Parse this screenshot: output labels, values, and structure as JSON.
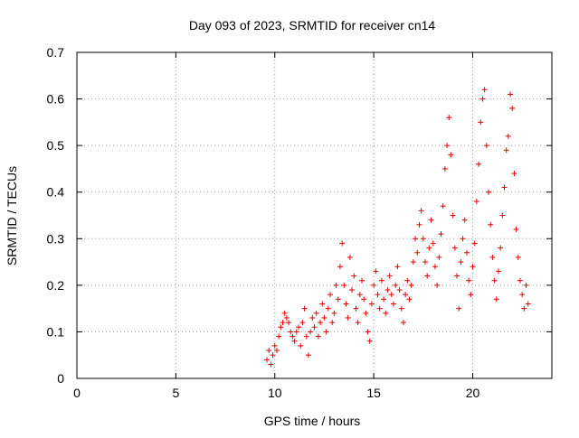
{
  "chart_data": {
    "type": "scatter",
    "title": "Day 093 of 2023, SRMTID for receiver cn14",
    "xlabel": "GPS time / hours",
    "ylabel": "SRMTID / TECUs",
    "xlim": [
      0,
      24
    ],
    "ylim": [
      0,
      0.7
    ],
    "xticks": [
      0,
      5,
      10,
      15,
      20
    ],
    "yticks": [
      0,
      0.1,
      0.2,
      0.3,
      0.4,
      0.5,
      0.6,
      0.7
    ],
    "grid": true,
    "marker": "plus",
    "color": "#e00000",
    "series": [
      {
        "name": "SRMTID",
        "points": [
          [
            9.6,
            0.04
          ],
          [
            9.7,
            0.06
          ],
          [
            9.8,
            0.03
          ],
          [
            9.9,
            0.05
          ],
          [
            10.0,
            0.07
          ],
          [
            10.1,
            0.06
          ],
          [
            10.2,
            0.09
          ],
          [
            10.3,
            0.11
          ],
          [
            10.4,
            0.12
          ],
          [
            10.5,
            0.14
          ],
          [
            10.6,
            0.13
          ],
          [
            10.7,
            0.12
          ],
          [
            10.8,
            0.1
          ],
          [
            10.9,
            0.09
          ],
          [
            11.0,
            0.08
          ],
          [
            11.1,
            0.1
          ],
          [
            11.2,
            0.11
          ],
          [
            11.3,
            0.07
          ],
          [
            11.4,
            0.12
          ],
          [
            11.5,
            0.15
          ],
          [
            11.6,
            0.09
          ],
          [
            11.7,
            0.05
          ],
          [
            11.8,
            0.1
          ],
          [
            11.9,
            0.13
          ],
          [
            12.0,
            0.11
          ],
          [
            12.1,
            0.14
          ],
          [
            12.2,
            0.09
          ],
          [
            12.3,
            0.12
          ],
          [
            12.4,
            0.16
          ],
          [
            12.5,
            0.13
          ],
          [
            12.6,
            0.1
          ],
          [
            12.7,
            0.15
          ],
          [
            12.8,
            0.18
          ],
          [
            12.9,
            0.12
          ],
          [
            13.0,
            0.14
          ],
          [
            13.1,
            0.2
          ],
          [
            13.2,
            0.17
          ],
          [
            13.3,
            0.24
          ],
          [
            13.4,
            0.29
          ],
          [
            13.5,
            0.2
          ],
          [
            13.6,
            0.16
          ],
          [
            13.7,
            0.13
          ],
          [
            13.8,
            0.26
          ],
          [
            13.9,
            0.19
          ],
          [
            14.0,
            0.22
          ],
          [
            14.1,
            0.15
          ],
          [
            14.2,
            0.12
          ],
          [
            14.3,
            0.18
          ],
          [
            14.4,
            0.21
          ],
          [
            14.5,
            0.17
          ],
          [
            14.6,
            0.14
          ],
          [
            14.7,
            0.1
          ],
          [
            14.8,
            0.08
          ],
          [
            14.9,
            0.16
          ],
          [
            15.0,
            0.2
          ],
          [
            15.1,
            0.23
          ],
          [
            15.2,
            0.18
          ],
          [
            15.3,
            0.15
          ],
          [
            15.4,
            0.21
          ],
          [
            15.5,
            0.17
          ],
          [
            15.6,
            0.14
          ],
          [
            15.7,
            0.19
          ],
          [
            15.8,
            0.22
          ],
          [
            15.9,
            0.18
          ],
          [
            16.0,
            0.16
          ],
          [
            16.1,
            0.2
          ],
          [
            16.2,
            0.24
          ],
          [
            16.3,
            0.19
          ],
          [
            16.4,
            0.15
          ],
          [
            16.5,
            0.12
          ],
          [
            16.6,
            0.18
          ],
          [
            16.7,
            0.21
          ],
          [
            16.8,
            0.17
          ],
          [
            16.9,
            0.2
          ],
          [
            17.0,
            0.25
          ],
          [
            17.1,
            0.3
          ],
          [
            17.2,
            0.27
          ],
          [
            17.3,
            0.33
          ],
          [
            17.4,
            0.36
          ],
          [
            17.5,
            0.3
          ],
          [
            17.6,
            0.25
          ],
          [
            17.7,
            0.22
          ],
          [
            17.8,
            0.28
          ],
          [
            17.9,
            0.34
          ],
          [
            18.0,
            0.29
          ],
          [
            18.1,
            0.24
          ],
          [
            18.2,
            0.2
          ],
          [
            18.3,
            0.26
          ],
          [
            18.4,
            0.31
          ],
          [
            18.5,
            0.37
          ],
          [
            18.6,
            0.45
          ],
          [
            18.7,
            0.5
          ],
          [
            18.8,
            0.56
          ],
          [
            18.9,
            0.48
          ],
          [
            19.0,
            0.35
          ],
          [
            19.1,
            0.28
          ],
          [
            19.2,
            0.22
          ],
          [
            19.3,
            0.15
          ],
          [
            19.4,
            0.25
          ],
          [
            19.5,
            0.3
          ],
          [
            19.6,
            0.34
          ],
          [
            19.7,
            0.27
          ],
          [
            19.8,
            0.21
          ],
          [
            19.9,
            0.18
          ],
          [
            20.0,
            0.24
          ],
          [
            20.1,
            0.29
          ],
          [
            20.2,
            0.38
          ],
          [
            20.3,
            0.46
          ],
          [
            20.4,
            0.55
          ],
          [
            20.5,
            0.6
          ],
          [
            20.6,
            0.62
          ],
          [
            20.7,
            0.5
          ],
          [
            20.8,
            0.4
          ],
          [
            20.9,
            0.33
          ],
          [
            21.0,
            0.26
          ],
          [
            21.1,
            0.21
          ],
          [
            21.2,
            0.17
          ],
          [
            21.3,
            0.23
          ],
          [
            21.4,
            0.28
          ],
          [
            21.5,
            0.35
          ],
          [
            21.6,
            0.41
          ],
          [
            21.7,
            0.49
          ],
          [
            21.8,
            0.52
          ],
          [
            21.9,
            0.61
          ],
          [
            22.0,
            0.58
          ],
          [
            22.1,
            0.44
          ],
          [
            22.2,
            0.32
          ],
          [
            22.3,
            0.26
          ],
          [
            22.4,
            0.21
          ],
          [
            22.5,
            0.18
          ],
          [
            22.6,
            0.15
          ],
          [
            22.7,
            0.2
          ],
          [
            22.8,
            0.16
          ]
        ]
      }
    ]
  }
}
